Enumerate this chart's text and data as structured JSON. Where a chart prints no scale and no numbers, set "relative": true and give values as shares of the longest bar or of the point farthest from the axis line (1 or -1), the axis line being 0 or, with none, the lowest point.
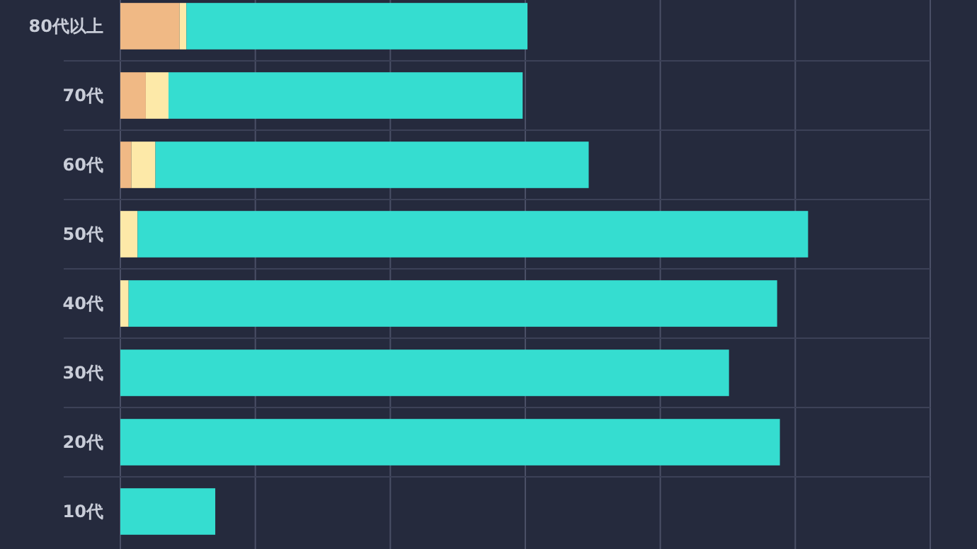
{
  "chart_data": {
    "type": "bar",
    "orientation": "horizontal",
    "stacked": true,
    "relative": true,
    "grid": true,
    "categories": [
      "80代以上",
      "70代",
      "60代",
      "50代",
      "40代",
      "30代",
      "20代",
      "10代"
    ],
    "series": [
      {
        "color": "#f0b985",
        "values": [
          0.086,
          0.037,
          0.016,
          0,
          0,
          0,
          0,
          0
        ]
      },
      {
        "color": "#fde9a8",
        "values": [
          0.01,
          0.033,
          0.035,
          0.025,
          0.012,
          0,
          0,
          0
        ]
      },
      {
        "color": "#35ddd0",
        "values": [
          0.496,
          0.515,
          0.63,
          0.975,
          0.943,
          0.885,
          0.959,
          0.138
        ]
      }
    ]
  }
}
